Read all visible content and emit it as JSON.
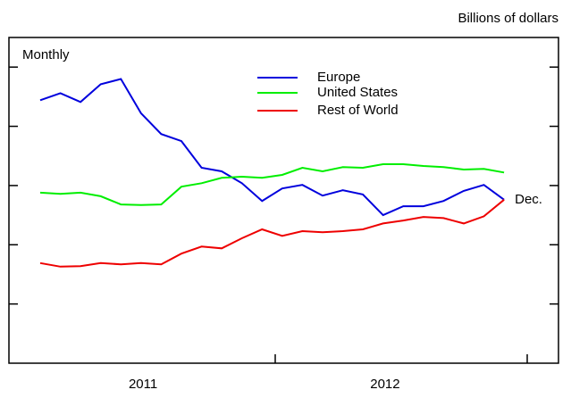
{
  "chart_data": {
    "type": "line",
    "subtitle": "Billions of dollars",
    "annotations": [
      "Monthly",
      "Dec."
    ],
    "categories": [
      null,
      null,
      null,
      null,
      null,
      "2011",
      null,
      null,
      null,
      null,
      null,
      null,
      null,
      null,
      null,
      null,
      null,
      "2012",
      null,
      null,
      null,
      null,
      null,
      null
    ],
    "series": [
      {
        "name": "Europe",
        "color": "#0000dd",
        "values": [
          4.44,
          4.56,
          4.41,
          4.71,
          4.8,
          4.22,
          3.87,
          3.75,
          3.3,
          3.24,
          3.04,
          2.74,
          2.95,
          3.01,
          2.83,
          2.92,
          2.85,
          2.5,
          2.65,
          2.65,
          2.74,
          2.91,
          3.01,
          2.76
        ]
      },
      {
        "name": "United States",
        "color": "#00ee00",
        "values": [
          2.88,
          2.86,
          2.88,
          2.82,
          2.68,
          2.67,
          2.68,
          2.98,
          3.04,
          3.13,
          3.15,
          3.13,
          3.18,
          3.3,
          3.24,
          3.31,
          3.3,
          3.36,
          3.36,
          3.33,
          3.31,
          3.27,
          3.28,
          3.22
        ]
      },
      {
        "name": "Rest of World",
        "color": "#ee0000",
        "values": [
          1.69,
          1.63,
          1.64,
          1.69,
          1.67,
          1.69,
          1.67,
          1.85,
          1.97,
          1.94,
          2.11,
          2.26,
          2.15,
          2.23,
          2.21,
          2.23,
          2.26,
          2.36,
          2.41,
          2.47,
          2.45,
          2.36,
          2.48,
          2.76
        ]
      }
    ],
    "ylim": [
      0,
      5.5
    ],
    "yticks": [
      1,
      2,
      3,
      4,
      5
    ]
  }
}
